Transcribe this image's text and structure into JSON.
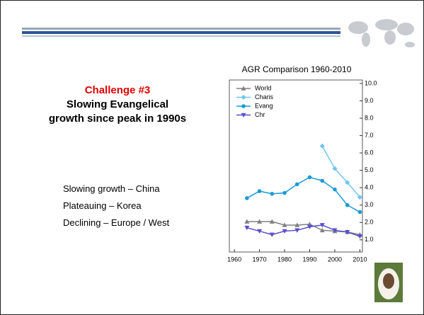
{
  "slide": {
    "heading": "Challenge #3",
    "subheading": [
      "Slowing Evangelical",
      "growth since peak in 1990s"
    ],
    "bullets": [
      "Slowing growth – China",
      "Plateauing – Korea",
      "Declining – Europe / West"
    ]
  },
  "chart_data": {
    "type": "line",
    "title": "AGR Comparison 1960-2010",
    "x": [
      1965,
      1970,
      1975,
      1980,
      1985,
      1990,
      1995,
      2000,
      2005,
      2010
    ],
    "series": [
      {
        "name": "World",
        "color": "#808080",
        "marker": "triangle",
        "values": [
          2.05,
          2.05,
          2.05,
          1.85,
          1.85,
          1.9,
          1.55,
          1.5,
          1.45,
          1.3
        ]
      },
      {
        "name": "Charis",
        "color": "#6ec6ee",
        "marker": "diamond",
        "values": [
          null,
          null,
          null,
          null,
          null,
          null,
          6.4,
          5.1,
          4.3,
          3.45
        ]
      },
      {
        "name": "Evang",
        "color": "#1a9ad6",
        "marker": "circle",
        "values": [
          3.4,
          3.8,
          3.65,
          3.7,
          4.2,
          4.6,
          4.4,
          3.9,
          3.0,
          2.6
        ]
      },
      {
        "name": "Chr",
        "color": "#5a4fcf",
        "marker": "triangle-down",
        "values": [
          1.7,
          1.5,
          1.3,
          1.5,
          1.55,
          1.75,
          1.85,
          1.55,
          1.45,
          1.2
        ]
      }
    ],
    "xlim": [
      1958,
      2011
    ],
    "xticks": [
      1960,
      1970,
      1980,
      1990,
      2000,
      2010
    ],
    "ylim": [
      0.3,
      10.2
    ],
    "yticks": [
      {
        "value": 1,
        "label": "1.0"
      },
      {
        "value": 2,
        "label": "2.0"
      },
      {
        "value": 3,
        "label": "3.0"
      },
      {
        "value": 4,
        "label": "4.0"
      },
      {
        "value": 5,
        "label": "5.0"
      },
      {
        "value": 6,
        "label": "6.0"
      },
      {
        "value": 7,
        "label": "7.0"
      },
      {
        "value": 8,
        "label": "8.0"
      },
      {
        "value": 9,
        "label": "9.0"
      },
      {
        "value": 10,
        "label": "10.0"
      }
    ],
    "legend": "upper-left"
  }
}
